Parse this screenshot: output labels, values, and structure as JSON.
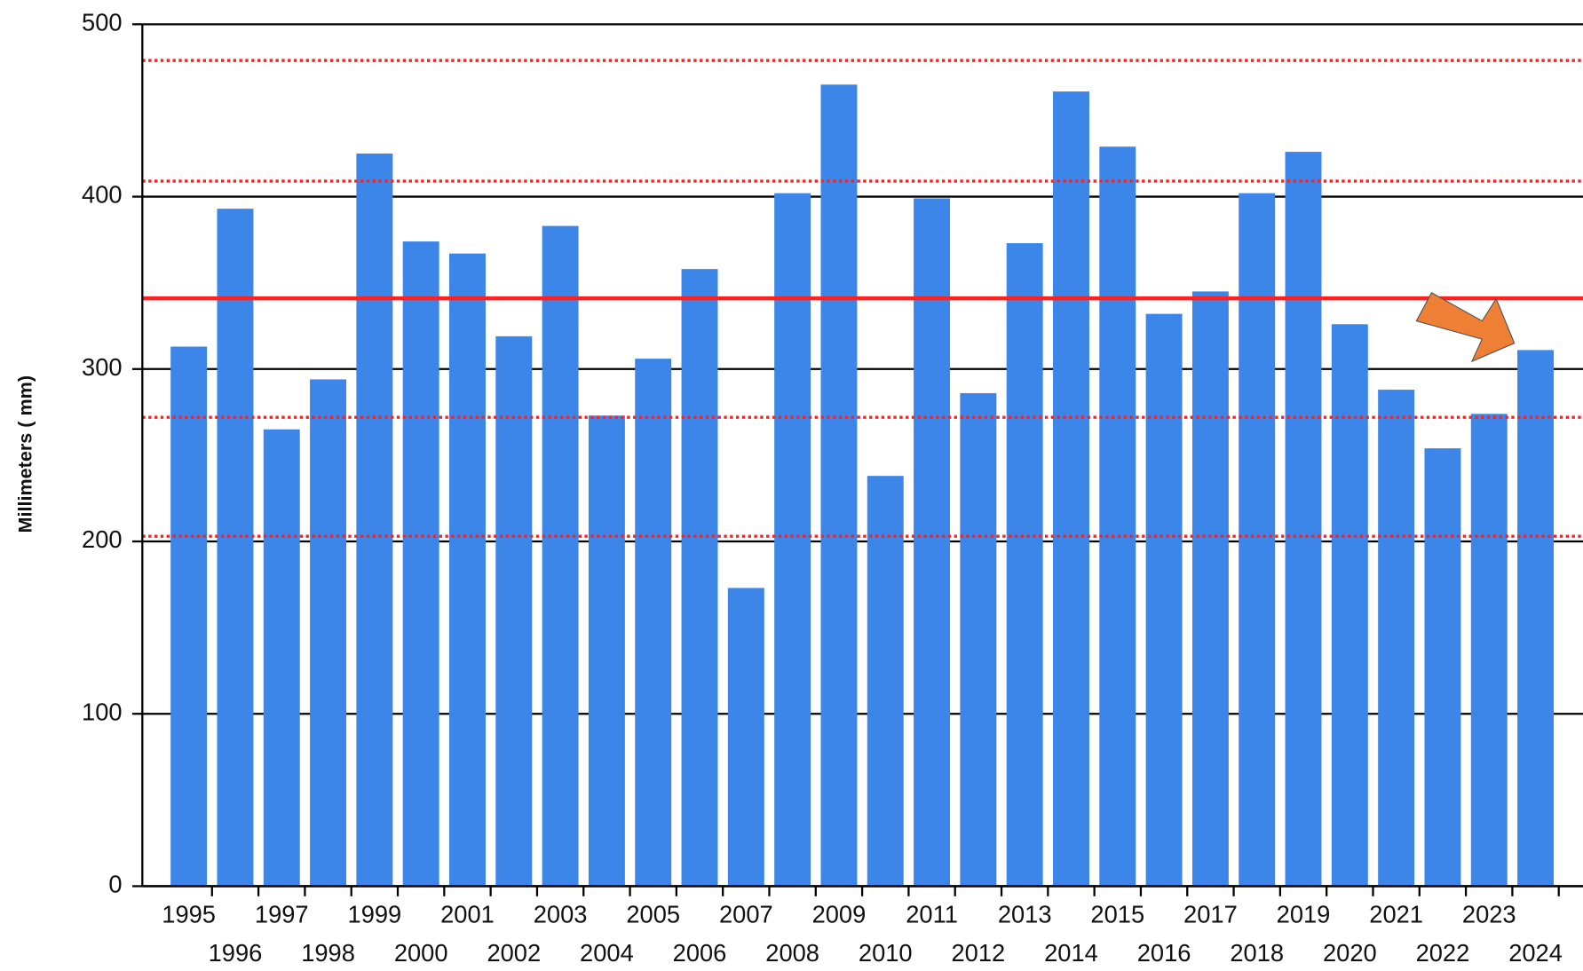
{
  "chart_data": {
    "type": "bar",
    "y_label": "Millimeters ( mm)",
    "categories": [
      "1995",
      "1996",
      "1997",
      "1998",
      "1999",
      "2000",
      "2001",
      "2002",
      "2003",
      "2004",
      "2005",
      "2006",
      "2007",
      "2008",
      "2009",
      "2010",
      "2011",
      "2012",
      "2013",
      "2014",
      "2015",
      "2016",
      "2017",
      "2018",
      "2019",
      "2020",
      "2021",
      "2022",
      "2023",
      "2024"
    ],
    "values": [
      313,
      393,
      265,
      294,
      425,
      374,
      367,
      319,
      383,
      273,
      306,
      358,
      173,
      402,
      465,
      238,
      399,
      286,
      373,
      461,
      429,
      332,
      345,
      402,
      426,
      326,
      288,
      254,
      274,
      311
    ],
    "color": "#3b86e8",
    "ylim": [
      0,
      500
    ],
    "yticks": [
      0,
      100,
      200,
      300,
      400,
      500
    ],
    "grid": true,
    "reference_lines": [
      {
        "value": 341,
        "style": "solid",
        "color": "#ff2020"
      },
      {
        "value": 479,
        "style": "dotted",
        "color": "#ff2020"
      },
      {
        "value": 409,
        "style": "dotted",
        "color": "#ff2020"
      },
      {
        "value": 272,
        "style": "dotted",
        "color": "#ff2020"
      },
      {
        "value": 203,
        "style": "dotted",
        "color": "#ff2020"
      }
    ]
  }
}
